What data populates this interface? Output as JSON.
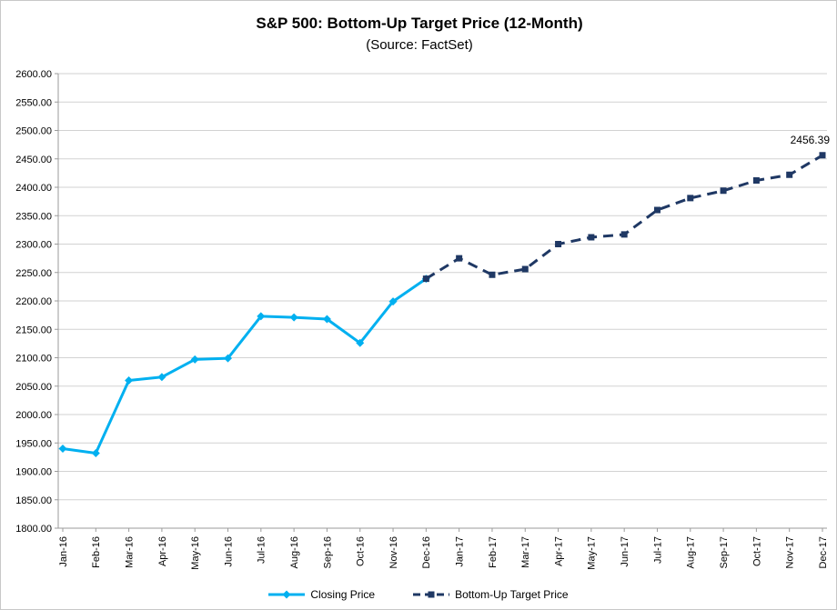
{
  "chart_data": {
    "type": "line",
    "title": "S&P 500: Bottom-Up Target Price (12-Month)",
    "subtitle": "(Source: FactSet)",
    "categories": [
      "Jan-16",
      "Feb-16",
      "Mar-16",
      "Apr-16",
      "May-16",
      "Jun-16",
      "Jul-16",
      "Aug-16",
      "Sep-16",
      "Oct-16",
      "Nov-16",
      "Dec-16",
      "Jan-17",
      "Feb-17",
      "Mar-17",
      "Apr-17",
      "May-17",
      "Jun-17",
      "Jul-17",
      "Aug-17",
      "Sep-17",
      "Oct-17",
      "Nov-17",
      "Dec-17"
    ],
    "series": [
      {
        "name": "Closing Price",
        "color": "#00B0F0",
        "style": "solid",
        "marker": "diamond",
        "values": [
          1940,
          1932,
          2060,
          2066,
          2097,
          2099,
          2173,
          2171,
          2168,
          2126,
          2199,
          2239,
          null,
          null,
          null,
          null,
          null,
          null,
          null,
          null,
          null,
          null,
          null,
          null
        ]
      },
      {
        "name": "Bottom-Up Target Price",
        "color": "#1F3864",
        "style": "dashed",
        "marker": "square",
        "values": [
          null,
          null,
          null,
          null,
          null,
          null,
          null,
          null,
          null,
          null,
          null,
          2239,
          2275,
          2246,
          2256,
          2300,
          2312,
          2317,
          2360,
          2381,
          2394,
          2412,
          2422,
          2456.39
        ]
      }
    ],
    "ylim": [
      1800,
      2600
    ],
    "ytick_step": 50,
    "ytick_format_decimals": 2,
    "grid": true,
    "legend_position": "bottom",
    "annotation": {
      "text": "2456.39",
      "x": "Dec-17",
      "y": 2456.39
    },
    "colors": {
      "gridline": "#D2D2D2",
      "axis": "#9B9B9B",
      "text": "#000000"
    }
  }
}
